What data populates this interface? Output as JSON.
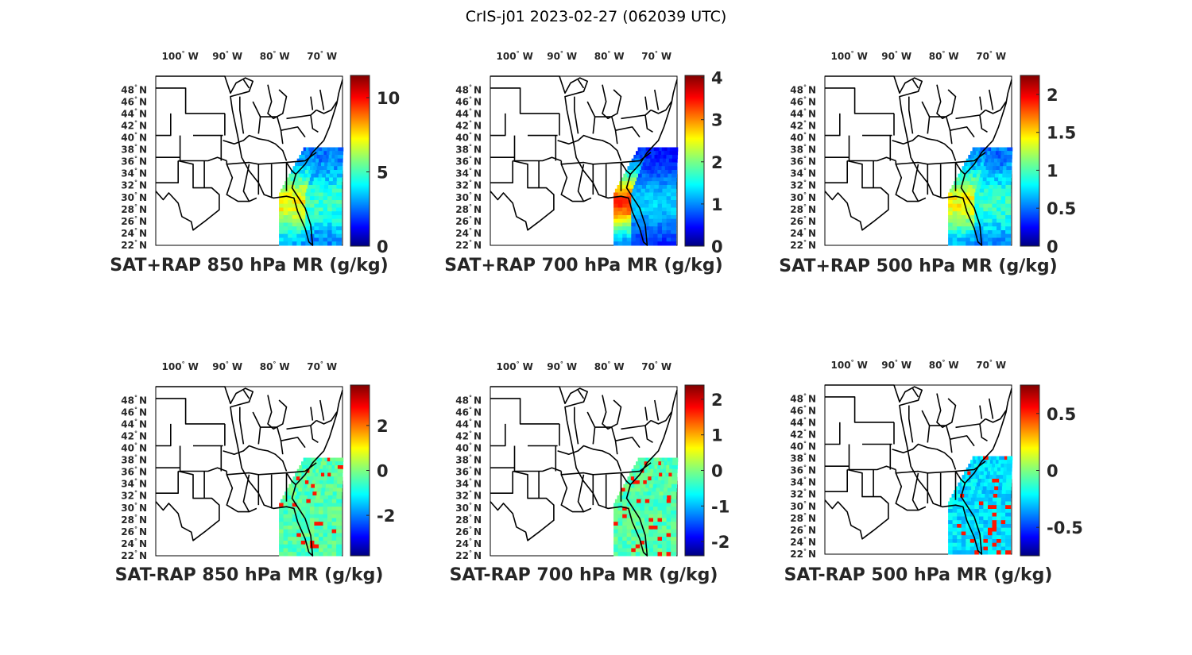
{
  "figure": {
    "title": "CrIS-j01 2023-02-27 (062039 UTC)",
    "colormap": "jet",
    "lon_ticks": [
      {
        "deg": "100",
        "hemi": "W",
        "value": -100
      },
      {
        "deg": "90",
        "hemi": "W",
        "value": -90
      },
      {
        "deg": "80",
        "hemi": "W",
        "value": -80
      },
      {
        "deg": "70",
        "hemi": "W",
        "value": -70
      }
    ],
    "lat_ticks": [
      {
        "deg": "48",
        "hemi": "N",
        "value": 48
      },
      {
        "deg": "46",
        "hemi": "N",
        "value": 46
      },
      {
        "deg": "44",
        "hemi": "N",
        "value": 44
      },
      {
        "deg": "42",
        "hemi": "N",
        "value": 42
      },
      {
        "deg": "40",
        "hemi": "N",
        "value": 40
      },
      {
        "deg": "38",
        "hemi": "N",
        "value": 38
      },
      {
        "deg": "36",
        "hemi": "N",
        "value": 36
      },
      {
        "deg": "34",
        "hemi": "N",
        "value": 34
      },
      {
        "deg": "32",
        "hemi": "N",
        "value": 32
      },
      {
        "deg": "30",
        "hemi": "N",
        "value": 30
      },
      {
        "deg": "28",
        "hemi": "N",
        "value": 28
      },
      {
        "deg": "26",
        "hemi": "N",
        "value": 26
      },
      {
        "deg": "24",
        "hemi": "N",
        "value": 24
      },
      {
        "deg": "22",
        "hemi": "N",
        "value": 22
      }
    ],
    "degree_symbol": "°"
  },
  "panels": [
    {
      "title": "SAT+RAP 850 hPa MR (g/kg)",
      "colorbar": {
        "min": 0,
        "max": 11.5,
        "ticks": [
          {
            "value": 0,
            "label": "0"
          },
          {
            "value": 5,
            "label": "5"
          },
          {
            "value": 10,
            "label": "10"
          }
        ]
      }
    },
    {
      "title": "SAT+RAP 700 hPa MR (g/kg)",
      "colorbar": {
        "min": 0,
        "max": 4.05,
        "ticks": [
          {
            "value": 0,
            "label": "0"
          },
          {
            "value": 1,
            "label": "1"
          },
          {
            "value": 2,
            "label": "2"
          },
          {
            "value": 3,
            "label": "3"
          },
          {
            "value": 4,
            "label": "4"
          }
        ]
      }
    },
    {
      "title": "SAT+RAP 500 hPa MR (g/kg)",
      "colorbar": {
        "min": 0,
        "max": 2.25,
        "ticks": [
          {
            "value": 0,
            "label": "0"
          },
          {
            "value": 0.5,
            "label": "0.5"
          },
          {
            "value": 1,
            "label": "1"
          },
          {
            "value": 1.5,
            "label": "1.5"
          },
          {
            "value": 2,
            "label": "2"
          }
        ]
      }
    },
    {
      "title": "SAT-RAP 850 hPa MR (g/kg)",
      "colorbar": {
        "min": -3.8,
        "max": 3.8,
        "ticks": [
          {
            "value": -2,
            "label": "-2"
          },
          {
            "value": 0,
            "label": "0"
          },
          {
            "value": 2,
            "label": "2"
          }
        ]
      }
    },
    {
      "title": "SAT-RAP 700 hPa MR (g/kg)",
      "colorbar": {
        "min": -2.4,
        "max": 2.4,
        "ticks": [
          {
            "value": -2,
            "label": "-2"
          },
          {
            "value": -1,
            "label": "-1"
          },
          {
            "value": 0,
            "label": "0"
          },
          {
            "value": 1,
            "label": "1"
          },
          {
            "value": 2,
            "label": "2"
          }
        ]
      }
    },
    {
      "title": "SAT-RAP 500 hPa MR (g/kg)",
      "colorbar": {
        "min": -0.75,
        "max": 0.75,
        "ticks": [
          {
            "value": -0.5,
            "label": "-0.5"
          },
          {
            "value": 0,
            "label": "0"
          },
          {
            "value": 0.5,
            "label": "0.5"
          }
        ]
      }
    }
  ]
}
